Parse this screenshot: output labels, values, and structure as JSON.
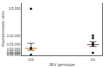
{
  "chart_data": {
    "type": "scatter",
    "categories": [
      "GII",
      "GI"
    ],
    "values": [
      [
        2.857e-05,
        5.263e-05,
        0.0002
      ],
      [
        3.571e-05,
        6.452e-05,
        7.143e-05,
        9.091e-05,
        0.0001
      ]
    ],
    "median": [
      5.263e-05,
      6.667e-05
    ],
    "ci_low": [
      4.545e-05,
      5.882e-05
    ],
    "ci_high": [
      7.143e-05,
      7.692e-05
    ],
    "xlabel": "JEV genotype",
    "ylabel": "Asymptomatic ratio",
    "ylim": [
      2.6315789473684212e-05,
      0.00022222222222222223
    ],
    "yticks": [
      {
        "value": 2.8571428571428574e-05,
        "label": "1/35,000"
      },
      {
        "value": 3.3333333333333335e-05,
        "label": "1/30,000"
      },
      {
        "value": 4e-05,
        "label": "1/25,000"
      },
      {
        "value": 5e-05,
        "label": "1/20,000"
      },
      {
        "value": 6.666666666666667e-05,
        "label": "1/15,000"
      },
      {
        "value": 0.0001,
        "label": "1/10,000"
      },
      {
        "value": 0.0002,
        "label": "1/5,000"
      }
    ],
    "grid": false,
    "marker": "square",
    "color": "#1a1a1a"
  }
}
